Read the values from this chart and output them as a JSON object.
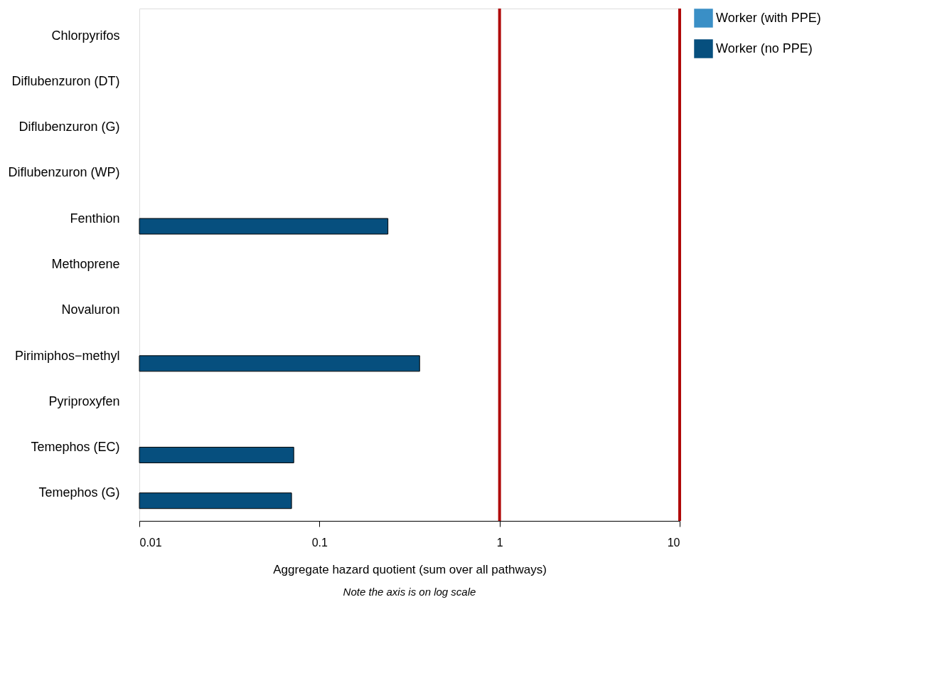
{
  "chart_data": {
    "type": "bar",
    "orientation": "horizontal",
    "xlabel": "Aggregate hazard quotient (sum over all pathways)",
    "annotations": [
      "Note the axis is on log scale"
    ],
    "categories": [
      "Chlorpyrifos",
      "Diflubenzuron (DT)",
      "Diflubenzuron (G)",
      "Diflubenzuron (WP)",
      "Fenthion",
      "Methoprene",
      "Novaluron",
      "Pirimiphos−methyl",
      "Pyriproxyfen",
      "Temephos (EC)",
      "Temephos (G)"
    ],
    "series": [
      {
        "name": "Worker (with PPE)",
        "color": "#3a8fc6",
        "values": [
          null,
          null,
          null,
          null,
          null,
          null,
          null,
          null,
          null,
          null,
          null
        ]
      },
      {
        "name": "Worker (no PPE)",
        "color": "#064f7e",
        "values": [
          null,
          null,
          null,
          null,
          0.24,
          null,
          null,
          0.36,
          null,
          0.072,
          0.07
        ]
      }
    ],
    "log": "x",
    "xlim": [
      0.01,
      10
    ],
    "xticks": [
      {
        "value": 0.01,
        "label": "0.01"
      },
      {
        "value": 0.1,
        "label": "0.1"
      },
      1,
      10
    ],
    "ref_lines": [
      {
        "axis": "x",
        "value": 1,
        "color": "#b00a0a"
      },
      {
        "axis": "x",
        "value": 10,
        "color": "#b00a0a"
      }
    ],
    "grid": false,
    "legend": "top right"
  }
}
